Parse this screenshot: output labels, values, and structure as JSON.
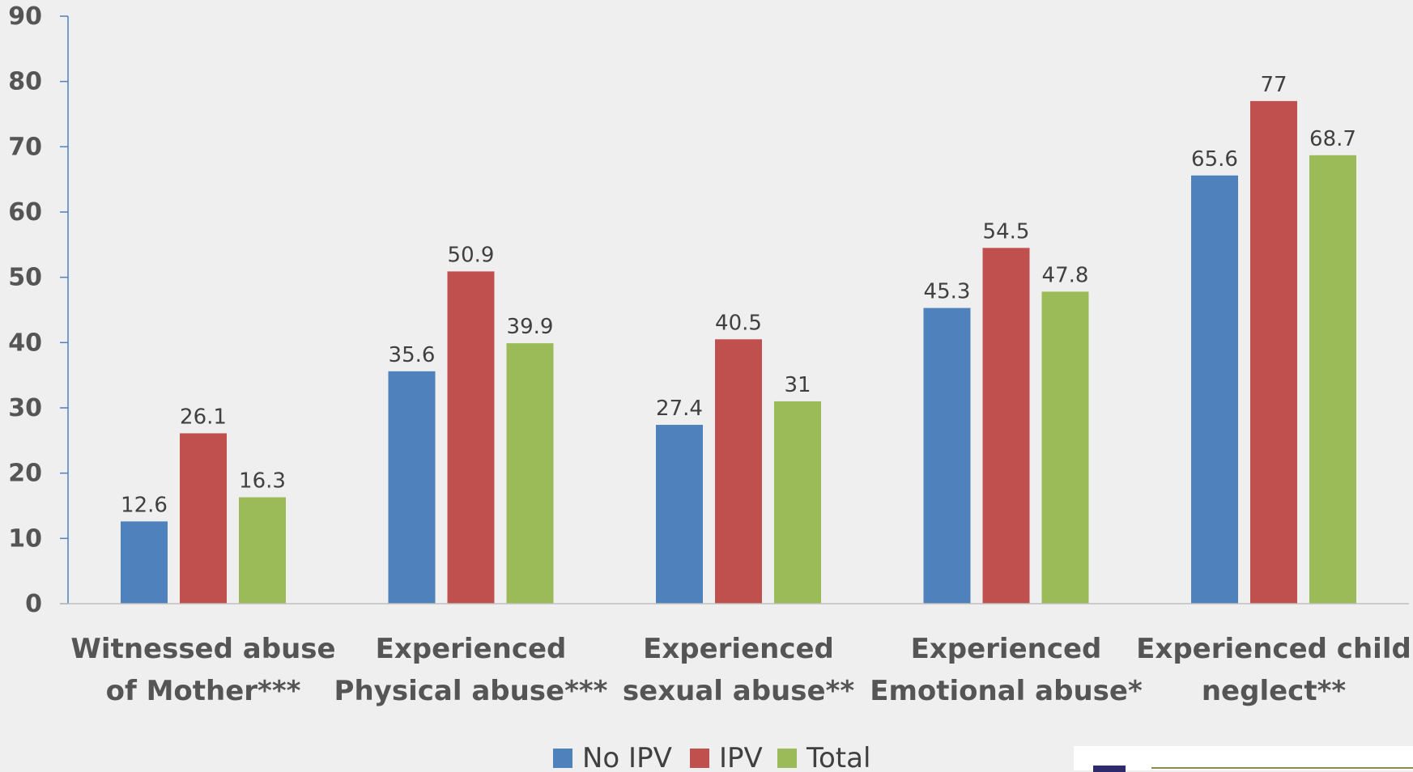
{
  "chart_data": {
    "type": "bar",
    "title": "",
    "xlabel": "",
    "ylabel": "",
    "ylim": [
      0,
      90
    ],
    "yticks": [
      0,
      10,
      20,
      30,
      40,
      50,
      60,
      70,
      80,
      90
    ],
    "grid": false,
    "legend": "bottom",
    "categories": [
      [
        "Witnessed abuse",
        "of Mother***"
      ],
      [
        "Experienced",
        "Physical abuse***"
      ],
      [
        "Experienced",
        "sexual abuse**"
      ],
      [
        "Experienced",
        "Emotional abuse*"
      ],
      [
        "Experienced child",
        "neglect**"
      ]
    ],
    "series": [
      {
        "name": "No IPV",
        "color": "#4f81bd",
        "values": [
          12.6,
          35.6,
          27.4,
          45.3,
          65.6
        ]
      },
      {
        "name": "IPV",
        "color": "#c0504d",
        "values": [
          26.1,
          50.9,
          40.5,
          54.5,
          77
        ]
      },
      {
        "name": "Total",
        "color": "#9bbb59",
        "values": [
          16.3,
          39.9,
          31,
          47.8,
          68.7
        ]
      }
    ]
  },
  "colors": {
    "background": "#efefef",
    "axis": "#4f81bd",
    "baseline": "#bfbfbf"
  }
}
